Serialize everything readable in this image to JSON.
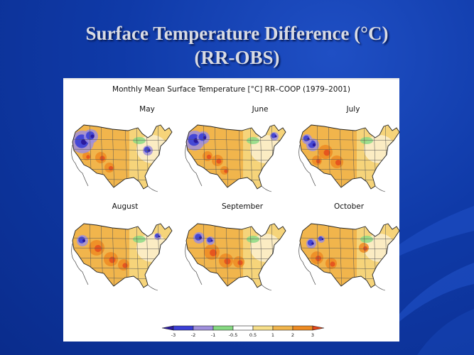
{
  "slide": {
    "title_line1": "Surface Temperature Difference (°C)",
    "title_line2": "(RR-OBS)"
  },
  "figure": {
    "header": "Monthly Mean Surface Temperature [°C] RR–COOP (1979–2001)",
    "months": [
      "May",
      "June",
      "July",
      "August",
      "September",
      "October"
    ],
    "colorbar_ticks": [
      "-3",
      "-2",
      "-1",
      "-0.5",
      "0.5",
      "1",
      "2",
      "3"
    ],
    "colors": {
      "le_-3": "#2a1a9e",
      "-3_-2": "#3a3fd6",
      "-2_-1": "#9f8fdc",
      "-1_-0.5": "#86d982",
      "-0.5_0.5": "#ffffff",
      "0.5_1": "#f7df8a",
      "1_2": "#f1b54c",
      "2_3": "#ee8b22",
      "ge_3": "#e3471b"
    }
  }
}
